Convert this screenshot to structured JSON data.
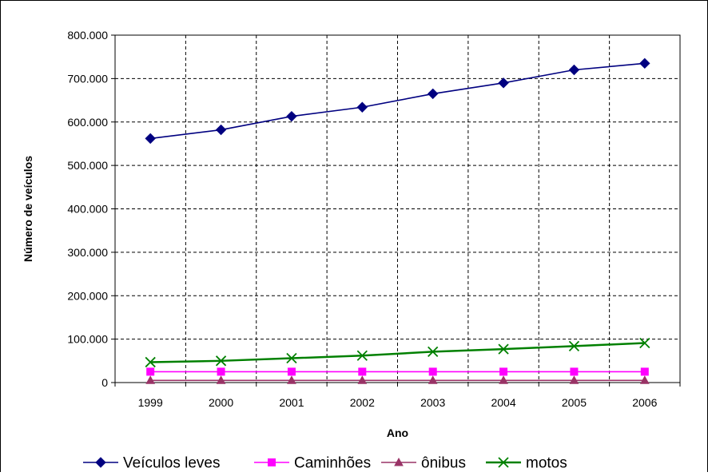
{
  "chart_data": {
    "type": "line",
    "title": "",
    "xlabel": "Ano",
    "ylabel": "Número de veículos",
    "categories": [
      "1999",
      "2000",
      "2001",
      "2002",
      "2003",
      "2004",
      "2005",
      "2006"
    ],
    "ylim": [
      0,
      800000
    ],
    "yticks": [
      0,
      100000,
      200000,
      300000,
      400000,
      500000,
      600000,
      700000,
      800000
    ],
    "ytick_labels": [
      "0",
      "100.000",
      "200.000",
      "300.000",
      "400.000",
      "500.000",
      "600.000",
      "700.000",
      "800.000"
    ],
    "grid": true,
    "legend_position": "bottom",
    "series": [
      {
        "name": "Veículos leves",
        "color": "#000080",
        "marker": "diamond",
        "values": [
          562000,
          582000,
          613000,
          634000,
          665000,
          690000,
          720000,
          735000
        ]
      },
      {
        "name": "Caminhões",
        "color": "#ff00ff",
        "marker": "square",
        "values": [
          25000,
          25000,
          25000,
          25000,
          25000,
          25000,
          25000,
          25000
        ]
      },
      {
        "name": "ônibus",
        "color": "#993366",
        "marker": "triangle",
        "values": [
          5000,
          5000,
          5000,
          5000,
          5000,
          5000,
          5000,
          5000
        ]
      },
      {
        "name": "motos",
        "color": "#008000",
        "marker": "x",
        "values": [
          47000,
          50000,
          56000,
          62000,
          71000,
          77000,
          84000,
          91000
        ]
      }
    ]
  }
}
